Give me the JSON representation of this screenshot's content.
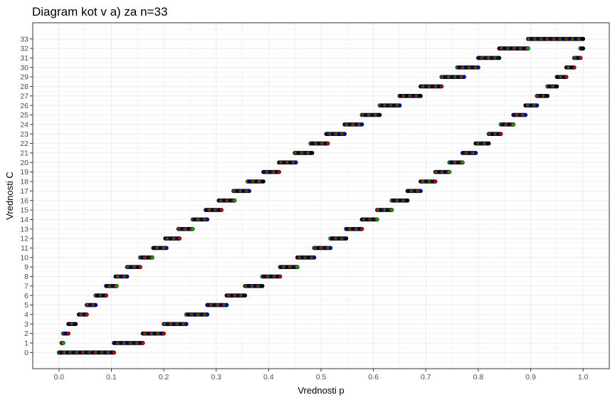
{
  "chart_data": {
    "type": "scatter",
    "title": "Diagram kot v a) za n=33",
    "xlabel": "Vrednosti p",
    "ylabel": "Vrednosti C",
    "xlim": [
      -0.05,
      1.05
    ],
    "ylim": [
      -1.7,
      34.7
    ],
    "x_ticks": [
      "0.0",
      "0.1",
      "0.2",
      "0.3",
      "0.4",
      "0.5",
      "0.6",
      "0.7",
      "0.8",
      "0.9",
      "1.0"
    ],
    "y_ticks": [
      "0",
      "1",
      "2",
      "3",
      "4",
      "5",
      "6",
      "7",
      "8",
      "9",
      "10",
      "11",
      "12",
      "13",
      "14",
      "15",
      "16",
      "17",
      "18",
      "19",
      "20",
      "21",
      "22",
      "23",
      "24",
      "25",
      "26",
      "27",
      "28",
      "29",
      "30",
      "31",
      "32",
      "33"
    ],
    "grid": true,
    "point_colors": [
      "#000000",
      "#cc0000",
      "#00aa00",
      "#0000cc"
    ],
    "series": [
      {
        "role": "upper",
        "segments": [
          {
            "c": 0,
            "x0": 0.0,
            "x1": 0.005
          },
          {
            "c": 1,
            "x0": 0.005,
            "x1": 0.008
          },
          {
            "c": 2,
            "x0": 0.008,
            "x1": 0.018
          },
          {
            "c": 3,
            "x0": 0.018,
            "x1": 0.032
          },
          {
            "c": 4,
            "x0": 0.038,
            "x1": 0.053
          },
          {
            "c": 5,
            "x0": 0.053,
            "x1": 0.07
          },
          {
            "c": 6,
            "x0": 0.07,
            "x1": 0.09
          },
          {
            "c": 7,
            "x0": 0.09,
            "x1": 0.11
          },
          {
            "c": 8,
            "x0": 0.108,
            "x1": 0.13
          },
          {
            "c": 9,
            "x0": 0.13,
            "x1": 0.155
          },
          {
            "c": 10,
            "x0": 0.155,
            "x1": 0.178
          },
          {
            "c": 11,
            "x0": 0.18,
            "x1": 0.205
          },
          {
            "c": 12,
            "x0": 0.203,
            "x1": 0.23
          },
          {
            "c": 13,
            "x0": 0.228,
            "x1": 0.255
          },
          {
            "c": 14,
            "x0": 0.255,
            "x1": 0.283
          },
          {
            "c": 15,
            "x0": 0.28,
            "x1": 0.31
          },
          {
            "c": 16,
            "x0": 0.305,
            "x1": 0.335
          },
          {
            "c": 17,
            "x0": 0.333,
            "x1": 0.363
          },
          {
            "c": 18,
            "x0": 0.36,
            "x1": 0.39
          },
          {
            "c": 19,
            "x0": 0.39,
            "x1": 0.42
          },
          {
            "c": 20,
            "x0": 0.42,
            "x1": 0.452
          },
          {
            "c": 21,
            "x0": 0.45,
            "x1": 0.483
          },
          {
            "c": 22,
            "x0": 0.48,
            "x1": 0.513
          },
          {
            "c": 23,
            "x0": 0.51,
            "x1": 0.545
          },
          {
            "c": 24,
            "x0": 0.545,
            "x1": 0.578
          },
          {
            "c": 25,
            "x0": 0.578,
            "x1": 0.612
          },
          {
            "c": 26,
            "x0": 0.612,
            "x1": 0.65
          },
          {
            "c": 27,
            "x0": 0.65,
            "x1": 0.69
          },
          {
            "c": 28,
            "x0": 0.69,
            "x1": 0.73
          },
          {
            "c": 29,
            "x0": 0.73,
            "x1": 0.773
          },
          {
            "c": 30,
            "x0": 0.76,
            "x1": 0.8
          },
          {
            "c": 31,
            "x0": 0.8,
            "x1": 0.84
          },
          {
            "c": 32,
            "x0": 0.84,
            "x1": 0.895
          },
          {
            "c": 33,
            "x0": 0.895,
            "x1": 1.0
          }
        ]
      },
      {
        "role": "lower",
        "segments": [
          {
            "c": 0,
            "x0": 0.0,
            "x1": 0.105
          },
          {
            "c": 1,
            "x0": 0.105,
            "x1": 0.16
          },
          {
            "c": 2,
            "x0": 0.16,
            "x1": 0.2
          },
          {
            "c": 3,
            "x0": 0.2,
            "x1": 0.243
          },
          {
            "c": 4,
            "x0": 0.243,
            "x1": 0.283
          },
          {
            "c": 5,
            "x0": 0.283,
            "x1": 0.32
          },
          {
            "c": 6,
            "x0": 0.32,
            "x1": 0.355
          },
          {
            "c": 7,
            "x0": 0.355,
            "x1": 0.388
          },
          {
            "c": 8,
            "x0": 0.388,
            "x1": 0.422
          },
          {
            "c": 9,
            "x0": 0.422,
            "x1": 0.455
          },
          {
            "c": 10,
            "x0": 0.455,
            "x1": 0.487
          },
          {
            "c": 11,
            "x0": 0.487,
            "x1": 0.518
          },
          {
            "c": 12,
            "x0": 0.518,
            "x1": 0.548
          },
          {
            "c": 13,
            "x0": 0.548,
            "x1": 0.578
          },
          {
            "c": 14,
            "x0": 0.578,
            "x1": 0.607
          },
          {
            "c": 15,
            "x0": 0.607,
            "x1": 0.635
          },
          {
            "c": 16,
            "x0": 0.635,
            "x1": 0.665
          },
          {
            "c": 17,
            "x0": 0.665,
            "x1": 0.69
          },
          {
            "c": 18,
            "x0": 0.69,
            "x1": 0.718
          },
          {
            "c": 19,
            "x0": 0.718,
            "x1": 0.745
          },
          {
            "c": 20,
            "x0": 0.745,
            "x1": 0.77
          },
          {
            "c": 21,
            "x0": 0.77,
            "x1": 0.795
          },
          {
            "c": 22,
            "x0": 0.795,
            "x1": 0.82
          },
          {
            "c": 23,
            "x0": 0.82,
            "x1": 0.843
          },
          {
            "c": 24,
            "x0": 0.843,
            "x1": 0.867
          },
          {
            "c": 25,
            "x0": 0.867,
            "x1": 0.89
          },
          {
            "c": 26,
            "x0": 0.89,
            "x1": 0.912
          },
          {
            "c": 27,
            "x0": 0.912,
            "x1": 0.932
          },
          {
            "c": 28,
            "x0": 0.932,
            "x1": 0.95
          },
          {
            "c": 29,
            "x0": 0.95,
            "x1": 0.968
          },
          {
            "c": 30,
            "x0": 0.968,
            "x1": 0.983
          },
          {
            "c": 31,
            "x0": 0.983,
            "x1": 0.995
          },
          {
            "c": 32,
            "x0": 0.995,
            "x1": 1.0
          }
        ]
      }
    ]
  }
}
